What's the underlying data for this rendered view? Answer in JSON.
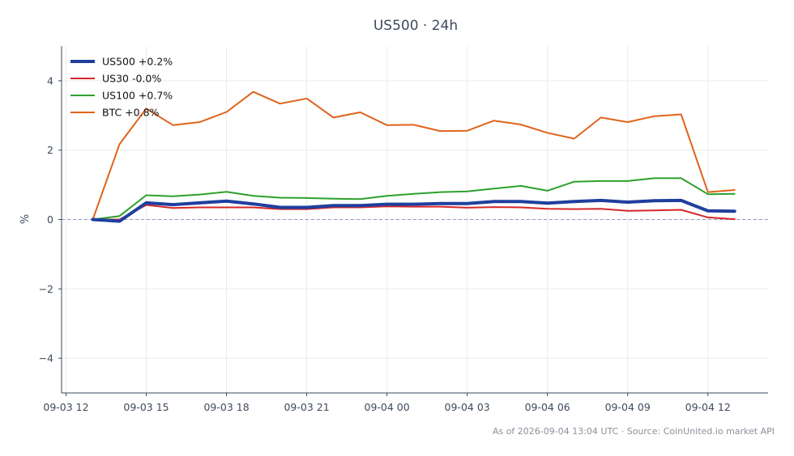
{
  "chart_data": {
    "type": "line",
    "title": "US500 · 24h",
    "xlabel": "",
    "ylabel": "%",
    "ylim": [
      -5,
      5
    ],
    "yticks": [
      -4,
      -2,
      0,
      2,
      4
    ],
    "ytick_labels": [
      "−4",
      "−2",
      "0",
      "2",
      "4"
    ],
    "xticks": [
      "2026-09-03 12:00",
      "2026-09-03 15:00",
      "2026-09-03 18:00",
      "2026-09-03 21:00",
      "2026-09-04 00:00",
      "2026-09-04 03:00",
      "2026-09-04 06:00",
      "2026-09-04 09:00",
      "2026-09-04 12:00"
    ],
    "xtick_labels": [
      "09-03 12",
      "09-03 15",
      "09-03 18",
      "09-03 21",
      "09-04 00",
      "09-04 03",
      "09-04 06",
      "09-04 09",
      "09-04 12"
    ],
    "xlim": [
      "2026-09-03 11:50",
      "2026-09-04 14:15"
    ],
    "x": [
      "2026-09-03 13:00",
      "2026-09-03 14:00",
      "2026-09-03 15:00",
      "2026-09-03 16:00",
      "2026-09-03 17:00",
      "2026-09-03 18:00",
      "2026-09-03 19:00",
      "2026-09-03 20:00",
      "2026-09-03 21:00",
      "2026-09-03 22:00",
      "2026-09-03 23:00",
      "2026-09-04 00:00",
      "2026-09-04 01:00",
      "2026-09-04 02:00",
      "2026-09-04 03:00",
      "2026-09-04 04:00",
      "2026-09-04 05:00",
      "2026-09-04 06:00",
      "2026-09-04 07:00",
      "2026-09-04 08:00",
      "2026-09-04 09:00",
      "2026-09-04 10:00",
      "2026-09-04 11:00",
      "2026-09-04 12:00",
      "2026-09-04 13:00"
    ],
    "grid": true,
    "baseline": 0,
    "legend_position": "top-left",
    "series": [
      {
        "name": "US500 +0.2%",
        "color": "#1f3f9e",
        "emphasis": true,
        "values": [
          0.0,
          -0.05,
          0.48,
          0.43,
          0.48,
          0.53,
          0.45,
          0.35,
          0.35,
          0.4,
          0.4,
          0.44,
          0.44,
          0.46,
          0.46,
          0.52,
          0.52,
          0.47,
          0.52,
          0.55,
          0.5,
          0.54,
          0.55,
          0.25,
          0.24
        ]
      },
      {
        "name": "US30 -0.0%",
        "color": "#d62728",
        "emphasis": false,
        "values": [
          0.0,
          0.0,
          0.42,
          0.33,
          0.35,
          0.35,
          0.35,
          0.3,
          0.3,
          0.35,
          0.35,
          0.38,
          0.37,
          0.37,
          0.34,
          0.36,
          0.35,
          0.31,
          0.3,
          0.31,
          0.25,
          0.26,
          0.28,
          0.06,
          0.01
        ]
      },
      {
        "name": "US100 +0.7%",
        "color": "#2ca02c",
        "emphasis": false,
        "values": [
          0.0,
          0.1,
          0.7,
          0.67,
          0.72,
          0.8,
          0.68,
          0.63,
          0.62,
          0.6,
          0.59,
          0.68,
          0.74,
          0.79,
          0.81,
          0.89,
          0.97,
          0.83,
          1.09,
          1.11,
          1.11,
          1.19,
          1.19,
          0.73,
          0.74
        ]
      },
      {
        "name": "BTC +0.8%",
        "color": "#e0631a",
        "emphasis": false,
        "values": [
          0.0,
          2.17,
          3.2,
          2.72,
          2.81,
          3.1,
          3.68,
          3.34,
          3.49,
          2.94,
          3.09,
          2.72,
          2.73,
          2.55,
          2.56,
          2.85,
          2.74,
          2.5,
          2.33,
          2.94,
          2.81,
          2.98,
          3.03,
          0.79,
          0.85
        ]
      }
    ],
    "footer": "As of 2026-09-04 13:04 UTC · Source: CoinUnited.io market API"
  }
}
